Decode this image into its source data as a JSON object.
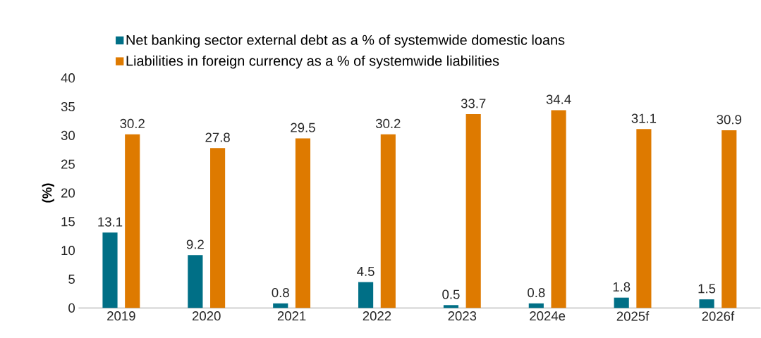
{
  "chart_data": {
    "type": "bar",
    "ylabel": "(%)",
    "categories": [
      "2019",
      "2020",
      "2021",
      "2022",
      "2023",
      "2024e",
      "2025f",
      "2026f"
    ],
    "series": [
      {
        "name": "Net banking sector external debt as a % of systemwide domestic loans",
        "color": "#006f86",
        "values": [
          13.1,
          9.2,
          0.8,
          4.5,
          0.5,
          0.8,
          1.8,
          1.5
        ]
      },
      {
        "name": "Liabilities in foreign currency as a % of systemwide liabilities",
        "color": "#de7a00",
        "values": [
          30.2,
          27.8,
          29.5,
          30.2,
          33.7,
          34.4,
          31.1,
          30.9
        ]
      }
    ],
    "ylim": [
      0,
      40
    ],
    "yticks": [
      0,
      5,
      10,
      15,
      20,
      25,
      30,
      35,
      40
    ],
    "data_labels": true,
    "legend": "top",
    "grid": false
  }
}
